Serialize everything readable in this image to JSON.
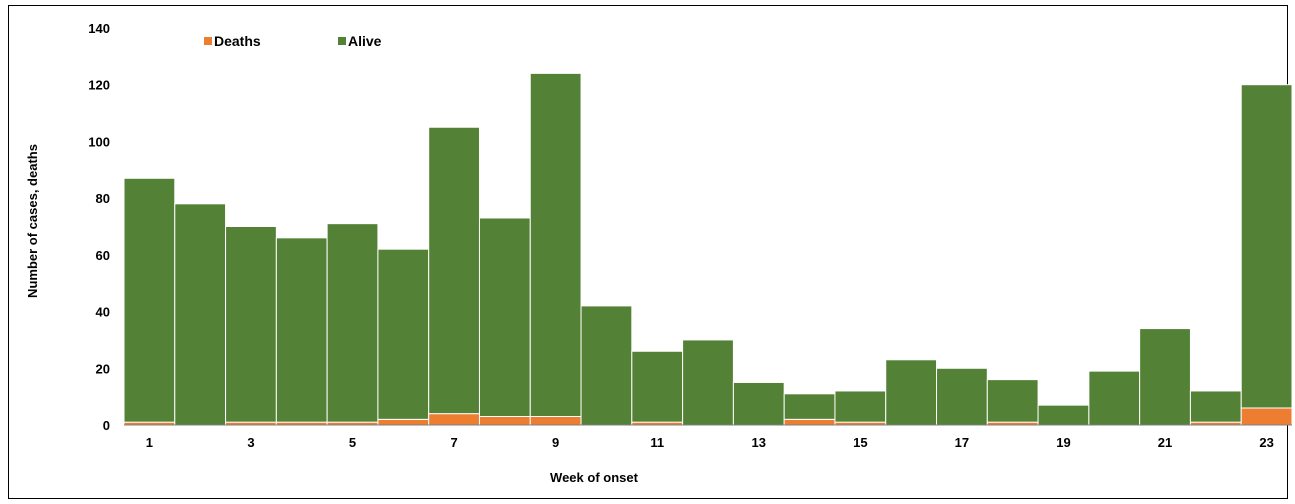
{
  "chart_data": {
    "type": "bar",
    "stacked": true,
    "title": "",
    "xlabel": "Week of onset",
    "ylabel": "Number of cases, deaths",
    "ylim": [
      0,
      140
    ],
    "ytick_step": 20,
    "yticks": [
      "0",
      "20",
      "40",
      "60",
      "80",
      "100",
      "120",
      "140"
    ],
    "categories": [
      "1",
      "2",
      "3",
      "4",
      "5",
      "6",
      "7",
      "8",
      "9",
      "10",
      "11",
      "12",
      "13",
      "14",
      "15",
      "16",
      "17",
      "18",
      "19",
      "20",
      "21",
      "22",
      "23"
    ],
    "x_tick_labels_shown": [
      "1",
      "3",
      "5",
      "7",
      "9",
      "11",
      "13",
      "15",
      "17",
      "19",
      "21",
      "23"
    ],
    "legend_position": "top-left",
    "grid": false,
    "series": [
      {
        "name": "Deaths",
        "color": "#ed7d31",
        "values": [
          1,
          0,
          1,
          1,
          1,
          2,
          4,
          3,
          3,
          0,
          1,
          0,
          0,
          2,
          1,
          0,
          0,
          1,
          0,
          0,
          0,
          1,
          6
        ]
      },
      {
        "name": "Alive",
        "color": "#538135",
        "values": [
          86,
          78,
          69,
          65,
          70,
          60,
          101,
          70,
          121,
          42,
          25,
          30,
          15,
          9,
          11,
          23,
          20,
          15,
          7,
          19,
          34,
          11,
          114
        ]
      }
    ]
  }
}
